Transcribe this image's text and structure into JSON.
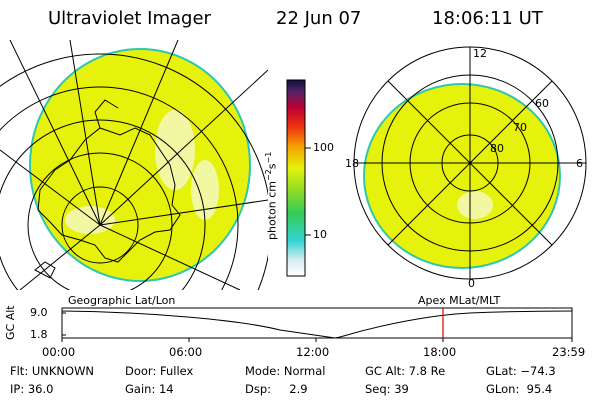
{
  "header": {
    "instrument": "Ultraviolet Imager",
    "date": "22 Jun 07",
    "time": "18:06:11 UT"
  },
  "colorbar": {
    "label_base": "photon cm",
    "label_exp1": "−2",
    "label_mid": "s",
    "label_exp2": "−1",
    "tick_100": "100",
    "tick_10": "10"
  },
  "polar": {
    "label_12": "12",
    "label_18": "18",
    "label_6": "6",
    "label_0": "0",
    "label_60": "60",
    "label_70": "70",
    "label_80": "80"
  },
  "timeline": {
    "left_title": "Geographic Lat/Lon",
    "right_title": "Apex MLat/MLT",
    "ylabel": "GC Alt",
    "ytick_top": "9.0",
    "ytick_bottom": "1.8",
    "xticks": [
      "00:00",
      "06:00",
      "12:00",
      "18:00",
      "23:59"
    ]
  },
  "footer": {
    "row1": [
      "Flt: UNKNOWN",
      "Door: Fullex",
      "Mode: Normal",
      "GC Alt: 7.8 Re",
      "GLat: −74.3"
    ],
    "row2": [
      "IP: 36.0",
      "Gain: 14",
      "Dsp:     2.9",
      "Seq: 39",
      "GLon:  95.4"
    ]
  },
  "colors": {
    "disk": "#e6f20c",
    "disk_edge": "#2cc7b0",
    "marker": "#d40000"
  }
}
